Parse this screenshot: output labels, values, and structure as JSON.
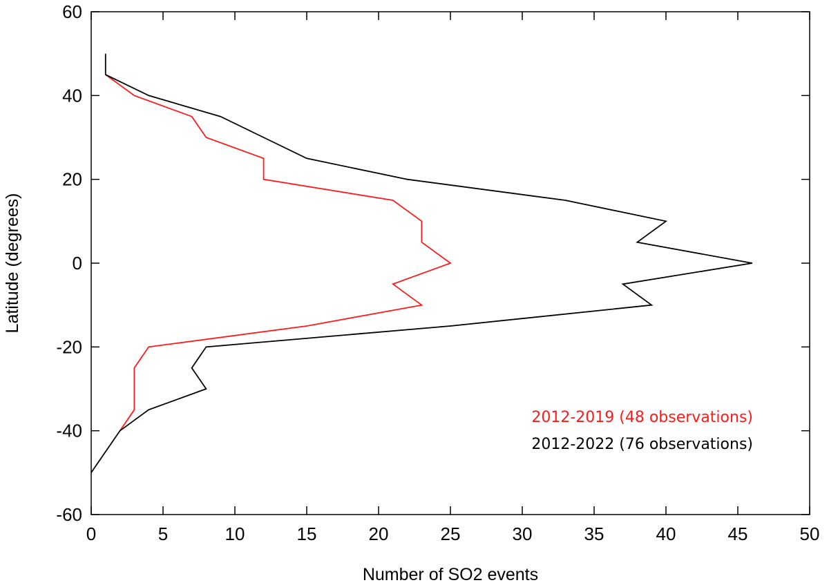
{
  "chart_data": {
    "type": "line",
    "title": "",
    "xlabel": "Number of SO2 events",
    "ylabel": "Latitude (degrees)",
    "xlim": [
      0,
      50
    ],
    "ylim": [
      -60,
      60
    ],
    "x_ticks": [
      "0",
      "5",
      "10",
      "15",
      "20",
      "25",
      "30",
      "35",
      "40",
      "45",
      "50"
    ],
    "y_ticks": [
      "60",
      "40",
      "20",
      "0",
      "-20",
      "-40",
      "-60"
    ],
    "grid": false,
    "legend_position": "bottom-right",
    "series": [
      {
        "name": "2012-2019 (48 observations)",
        "color": "#ff1a1a",
        "points": [
          {
            "x": 1,
            "y": 45
          },
          {
            "x": 3,
            "y": 40
          },
          {
            "x": 7,
            "y": 35
          },
          {
            "x": 8,
            "y": 30
          },
          {
            "x": 12,
            "y": 25
          },
          {
            "x": 12,
            "y": 20
          },
          {
            "x": 21,
            "y": 15
          },
          {
            "x": 23,
            "y": 10
          },
          {
            "x": 23,
            "y": 5
          },
          {
            "x": 25,
            "y": 0
          },
          {
            "x": 21,
            "y": -5
          },
          {
            "x": 23,
            "y": -10
          },
          {
            "x": 15,
            "y": -15
          },
          {
            "x": 4,
            "y": -20
          },
          {
            "x": 3,
            "y": -25
          },
          {
            "x": 3,
            "y": -30
          },
          {
            "x": 3,
            "y": -35
          },
          {
            "x": 2,
            "y": -40
          }
        ]
      },
      {
        "name": "2012-2022 (76 observations)",
        "color": "#000000",
        "points": [
          {
            "x": 1,
            "y": 50
          },
          {
            "x": 1,
            "y": 45
          },
          {
            "x": 4,
            "y": 40
          },
          {
            "x": 9,
            "y": 35
          },
          {
            "x": 12,
            "y": 30
          },
          {
            "x": 15,
            "y": 25
          },
          {
            "x": 22,
            "y": 20
          },
          {
            "x": 33,
            "y": 15
          },
          {
            "x": 40,
            "y": 10
          },
          {
            "x": 38,
            "y": 5
          },
          {
            "x": 46,
            "y": 0
          },
          {
            "x": 37,
            "y": -5
          },
          {
            "x": 39,
            "y": -10
          },
          {
            "x": 25,
            "y": -15
          },
          {
            "x": 8,
            "y": -20
          },
          {
            "x": 7,
            "y": -25
          },
          {
            "x": 8,
            "y": -30
          },
          {
            "x": 4,
            "y": -35
          },
          {
            "x": 2,
            "y": -40
          },
          {
            "x": 0,
            "y": -50
          }
        ]
      }
    ]
  }
}
